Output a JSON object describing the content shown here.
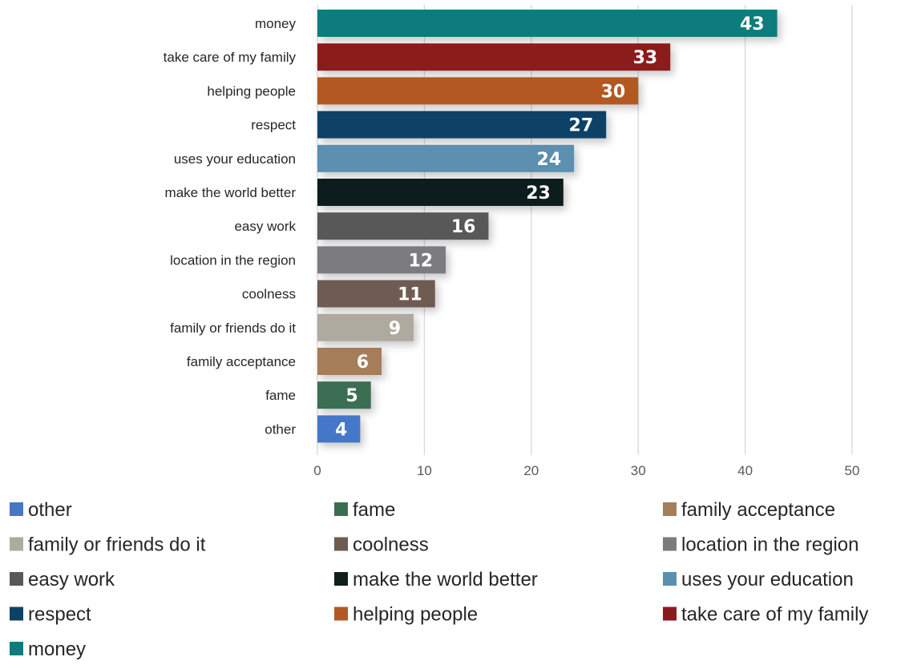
{
  "chart_data": {
    "type": "bar",
    "orientation": "horizontal",
    "categories": [
      "money",
      "take care of my family",
      "helping people",
      "respect",
      "uses your education",
      "make the world better",
      "easy work",
      "location in the region",
      "coolness",
      "family or friends do it",
      "family acceptance",
      "fame",
      "other"
    ],
    "values": [
      43,
      33,
      30,
      27,
      24,
      23,
      16,
      12,
      11,
      9,
      6,
      5,
      4
    ],
    "colors": [
      "#0e7c7b",
      "#8b1a1f",
      "#b35824",
      "#0b4266",
      "#5b8fb0",
      "#101f1c",
      "#585858",
      "#7b7c80",
      "#6e5c52",
      "#aeaaa0",
      "#a57d58",
      "#3a6e52",
      "#4577c9"
    ],
    "xticks": [
      0,
      10,
      20,
      30,
      40,
      50
    ],
    "xlim": [
      0,
      50
    ],
    "grid": true,
    "data_labels": true,
    "legend": {
      "placement": "bottom",
      "columns": 3,
      "entries": [
        "other",
        "fame",
        "family acceptance",
        "family or friends do it",
        "coolness",
        "location in the region",
        "easy work",
        "make the world better",
        "uses your education",
        "respect",
        "helping people",
        "take care of my family",
        "money"
      ]
    }
  }
}
